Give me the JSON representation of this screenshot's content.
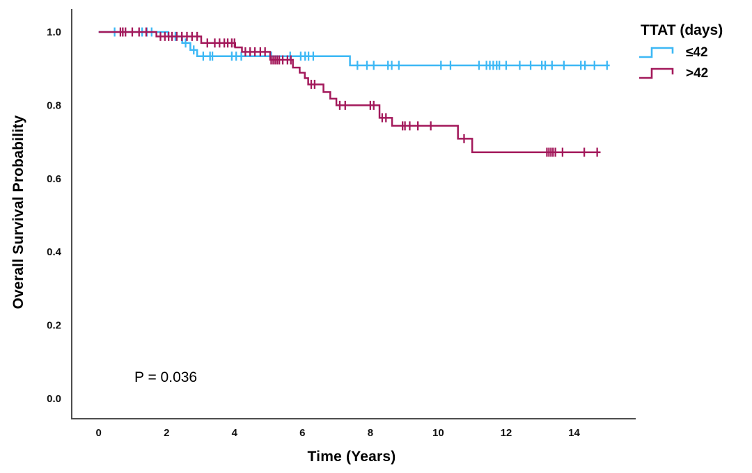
{
  "figure": {
    "y_axis_title": "Overall Survival Probability",
    "x_axis_title": "Time (Years)",
    "p_value_label": "P = 0.036",
    "legend": {
      "title": "TTAT (days)",
      "entries": [
        {
          "label": "≤42"
        },
        {
          "label": ">42"
        }
      ]
    }
  },
  "chart_data": {
    "type": "line",
    "subtype": "kaplan-meier-step-function",
    "title": "",
    "xlabel": "Time (Years)",
    "ylabel": "Overall Survival Probability",
    "annotation": "P = 0.036",
    "legend_title": "TTAT (days)",
    "legend_position": "top-right",
    "grid": false,
    "xlim": [
      -0.8,
      15.8
    ],
    "ylim": [
      -0.05,
      1.06
    ],
    "axis_color": "#4d4d4d",
    "x_ticks": [
      {
        "v": 0,
        "label": "0"
      },
      {
        "v": 2,
        "label": "2"
      },
      {
        "v": 4,
        "label": "4"
      },
      {
        "v": 6,
        "label": "6"
      },
      {
        "v": 8,
        "label": "8"
      },
      {
        "v": 10,
        "label": "10"
      },
      {
        "v": 12,
        "label": "12"
      },
      {
        "v": 14,
        "label": "14"
      }
    ],
    "y_ticks": [
      {
        "v": 1.0,
        "label": "1.0"
      },
      {
        "v": 0.8,
        "label": "0.8"
      },
      {
        "v": 0.6,
        "label": "0.6"
      },
      {
        "v": 0.4,
        "label": "0.4"
      },
      {
        "v": 0.2,
        "label": "0.2"
      },
      {
        "v": 0.0,
        "label": "0.0"
      }
    ],
    "series": [
      {
        "name": "≤42",
        "color": "#3db8f5",
        "steps": [
          [
            0,
            1.0
          ],
          [
            2.05,
            0.988
          ],
          [
            2.46,
            0.97
          ],
          [
            2.7,
            0.951
          ],
          [
            2.9,
            0.934
          ],
          [
            7.4,
            0.909
          ]
        ],
        "end_t": 15.05,
        "censors": [
          [
            0.47,
            1.0
          ],
          [
            1.28,
            1.0
          ],
          [
            1.42,
            1.0
          ],
          [
            1.56,
            1.0
          ],
          [
            2.26,
            0.988
          ],
          [
            2.56,
            0.97
          ],
          [
            2.8,
            0.951
          ],
          [
            3.08,
            0.934
          ],
          [
            3.28,
            0.934
          ],
          [
            3.35,
            0.934
          ],
          [
            3.92,
            0.934
          ],
          [
            4.05,
            0.934
          ],
          [
            4.2,
            0.934
          ],
          [
            5.08,
            0.934
          ],
          [
            5.64,
            0.934
          ],
          [
            5.95,
            0.934
          ],
          [
            6.08,
            0.934
          ],
          [
            6.18,
            0.934
          ],
          [
            6.32,
            0.934
          ],
          [
            7.62,
            0.909
          ],
          [
            7.9,
            0.909
          ],
          [
            8.1,
            0.909
          ],
          [
            8.52,
            0.909
          ],
          [
            8.63,
            0.909
          ],
          [
            8.84,
            0.909
          ],
          [
            10.08,
            0.909
          ],
          [
            10.36,
            0.909
          ],
          [
            11.2,
            0.909
          ],
          [
            11.42,
            0.909
          ],
          [
            11.52,
            0.909
          ],
          [
            11.62,
            0.909
          ],
          [
            11.72,
            0.909
          ],
          [
            11.8,
            0.909
          ],
          [
            12.0,
            0.909
          ],
          [
            12.4,
            0.909
          ],
          [
            12.72,
            0.909
          ],
          [
            13.05,
            0.909
          ],
          [
            13.15,
            0.909
          ],
          [
            13.35,
            0.909
          ],
          [
            13.7,
            0.909
          ],
          [
            14.2,
            0.909
          ],
          [
            14.32,
            0.909
          ],
          [
            14.6,
            0.909
          ],
          [
            14.97,
            0.909
          ]
        ]
      },
      {
        "name": ">42",
        "color": "#a3195b",
        "steps": [
          [
            0,
            1.0
          ],
          [
            1.7,
            0.988
          ],
          [
            3.02,
            0.97
          ],
          [
            4.02,
            0.958
          ],
          [
            4.22,
            0.946
          ],
          [
            5.05,
            0.924
          ],
          [
            5.72,
            0.903
          ],
          [
            5.92,
            0.889
          ],
          [
            6.07,
            0.874
          ],
          [
            6.17,
            0.857
          ],
          [
            6.62,
            0.836
          ],
          [
            6.82,
            0.818
          ],
          [
            7.0,
            0.8
          ],
          [
            8.27,
            0.766
          ],
          [
            8.64,
            0.744
          ],
          [
            10.58,
            0.709
          ],
          [
            11.0,
            0.672
          ]
        ],
        "end_t": 14.78,
        "censors": [
          [
            0.64,
            1.0
          ],
          [
            0.71,
            1.0
          ],
          [
            0.79,
            1.0
          ],
          [
            0.99,
            1.0
          ],
          [
            1.19,
            1.0
          ],
          [
            1.4,
            1.0
          ],
          [
            1.82,
            0.988
          ],
          [
            1.95,
            0.988
          ],
          [
            2.06,
            0.988
          ],
          [
            2.16,
            0.988
          ],
          [
            2.3,
            0.988
          ],
          [
            2.45,
            0.988
          ],
          [
            2.6,
            0.988
          ],
          [
            2.75,
            0.988
          ],
          [
            2.9,
            0.988
          ],
          [
            3.2,
            0.97
          ],
          [
            3.42,
            0.97
          ],
          [
            3.56,
            0.97
          ],
          [
            3.7,
            0.97
          ],
          [
            3.8,
            0.97
          ],
          [
            3.92,
            0.97
          ],
          [
            4.0,
            0.97
          ],
          [
            4.32,
            0.946
          ],
          [
            4.46,
            0.946
          ],
          [
            4.6,
            0.946
          ],
          [
            4.76,
            0.946
          ],
          [
            4.9,
            0.946
          ],
          [
            5.08,
            0.924
          ],
          [
            5.14,
            0.924
          ],
          [
            5.2,
            0.924
          ],
          [
            5.26,
            0.924
          ],
          [
            5.32,
            0.924
          ],
          [
            5.42,
            0.924
          ],
          [
            5.56,
            0.924
          ],
          [
            5.66,
            0.924
          ],
          [
            6.26,
            0.857
          ],
          [
            6.36,
            0.857
          ],
          [
            7.1,
            0.8
          ],
          [
            7.26,
            0.8
          ],
          [
            8.0,
            0.8
          ],
          [
            8.1,
            0.8
          ],
          [
            8.35,
            0.766
          ],
          [
            8.46,
            0.766
          ],
          [
            8.95,
            0.744
          ],
          [
            9.02,
            0.744
          ],
          [
            9.16,
            0.744
          ],
          [
            9.4,
            0.744
          ],
          [
            9.78,
            0.744
          ],
          [
            10.76,
            0.709
          ],
          [
            13.2,
            0.672
          ],
          [
            13.26,
            0.672
          ],
          [
            13.32,
            0.672
          ],
          [
            13.38,
            0.672
          ],
          [
            13.45,
            0.672
          ],
          [
            13.66,
            0.672
          ],
          [
            14.3,
            0.672
          ],
          [
            14.68,
            0.672
          ]
        ]
      }
    ]
  }
}
